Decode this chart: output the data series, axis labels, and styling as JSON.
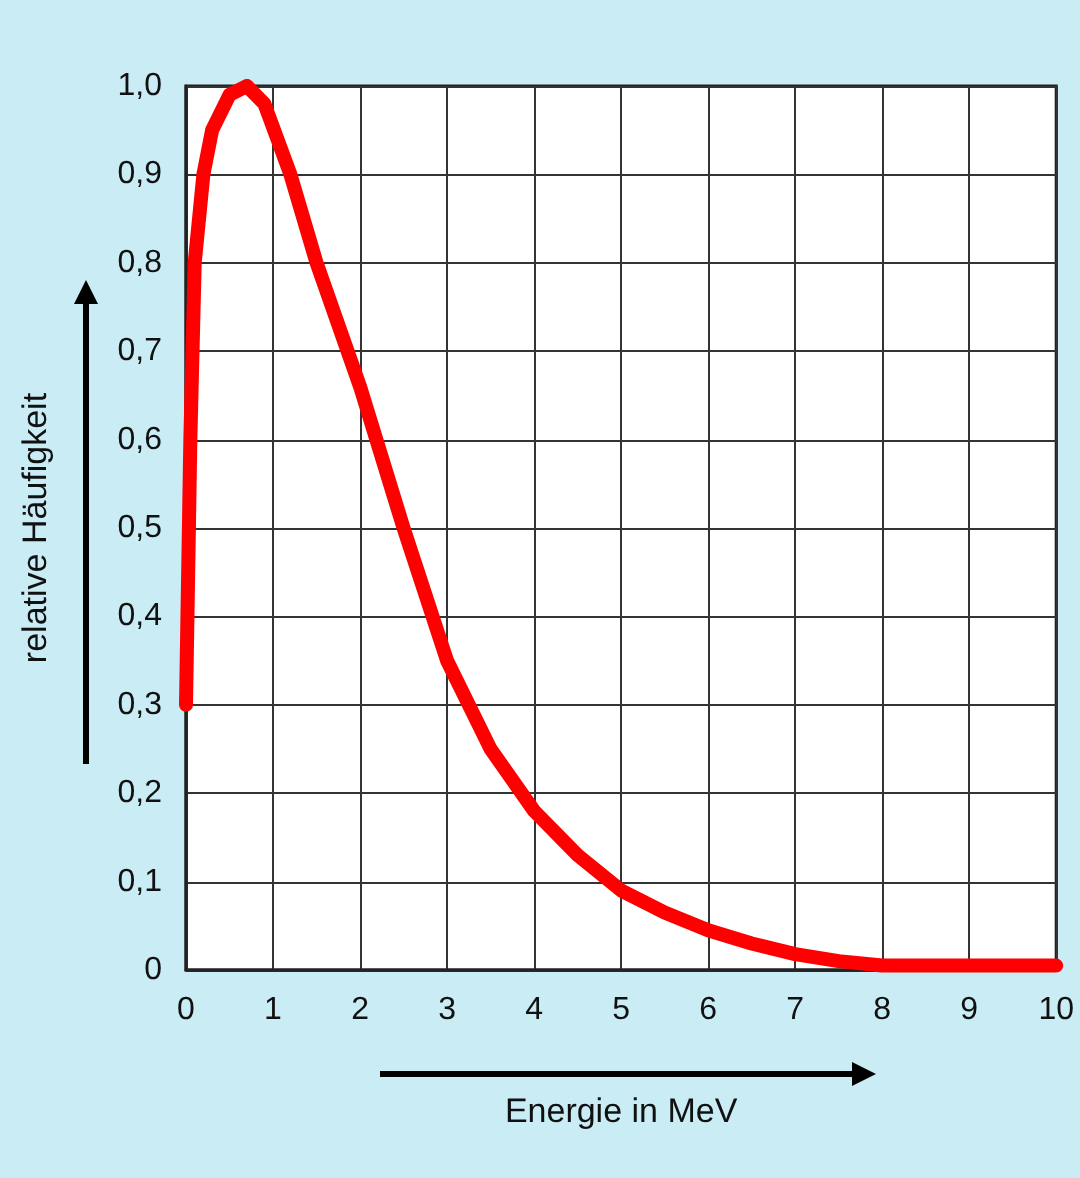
{
  "chart_data": {
    "type": "line",
    "xlabel": "Energie in MeV",
    "ylabel": "relative Häufigkeit",
    "x": [
      0,
      0.05,
      0.1,
      0.2,
      0.3,
      0.5,
      0.7,
      0.9,
      1.2,
      1.5,
      2,
      2.5,
      3,
      3.5,
      4,
      4.5,
      5,
      5.5,
      6,
      6.5,
      7,
      7.5,
      8,
      9,
      10
    ],
    "series": [
      {
        "color": "#ff0000",
        "values": [
          0.3,
          0.6,
          0.8,
          0.9,
          0.95,
          0.99,
          1.0,
          0.98,
          0.9,
          0.8,
          0.66,
          0.5,
          0.35,
          0.25,
          0.18,
          0.13,
          0.09,
          0.065,
          0.045,
          0.03,
          0.018,
          0.01,
          0.005,
          0.005,
          0.005
        ]
      }
    ],
    "xlim": [
      0,
      10
    ],
    "xticks": [
      0,
      1,
      2,
      3,
      4,
      5,
      6,
      7,
      8,
      9,
      10
    ],
    "ylim": [
      0,
      1
    ],
    "yticks": [
      {
        "value": 0,
        "label": "0"
      },
      {
        "value": 0.1,
        "label": "0,1"
      },
      {
        "value": 0.2,
        "label": "0,2"
      },
      {
        "value": 0.3,
        "label": "0,3"
      },
      {
        "value": 0.4,
        "label": "0,4"
      },
      {
        "value": 0.5,
        "label": "0,5"
      },
      {
        "value": 0.6,
        "label": "0,6"
      },
      {
        "value": 0.7,
        "label": "0,7"
      },
      {
        "value": 0.8,
        "label": "0,8"
      },
      {
        "value": 0.9,
        "label": "0,9"
      },
      {
        "value": 1,
        "label": "1,0"
      }
    ],
    "grid": true,
    "line_style": "solid"
  }
}
